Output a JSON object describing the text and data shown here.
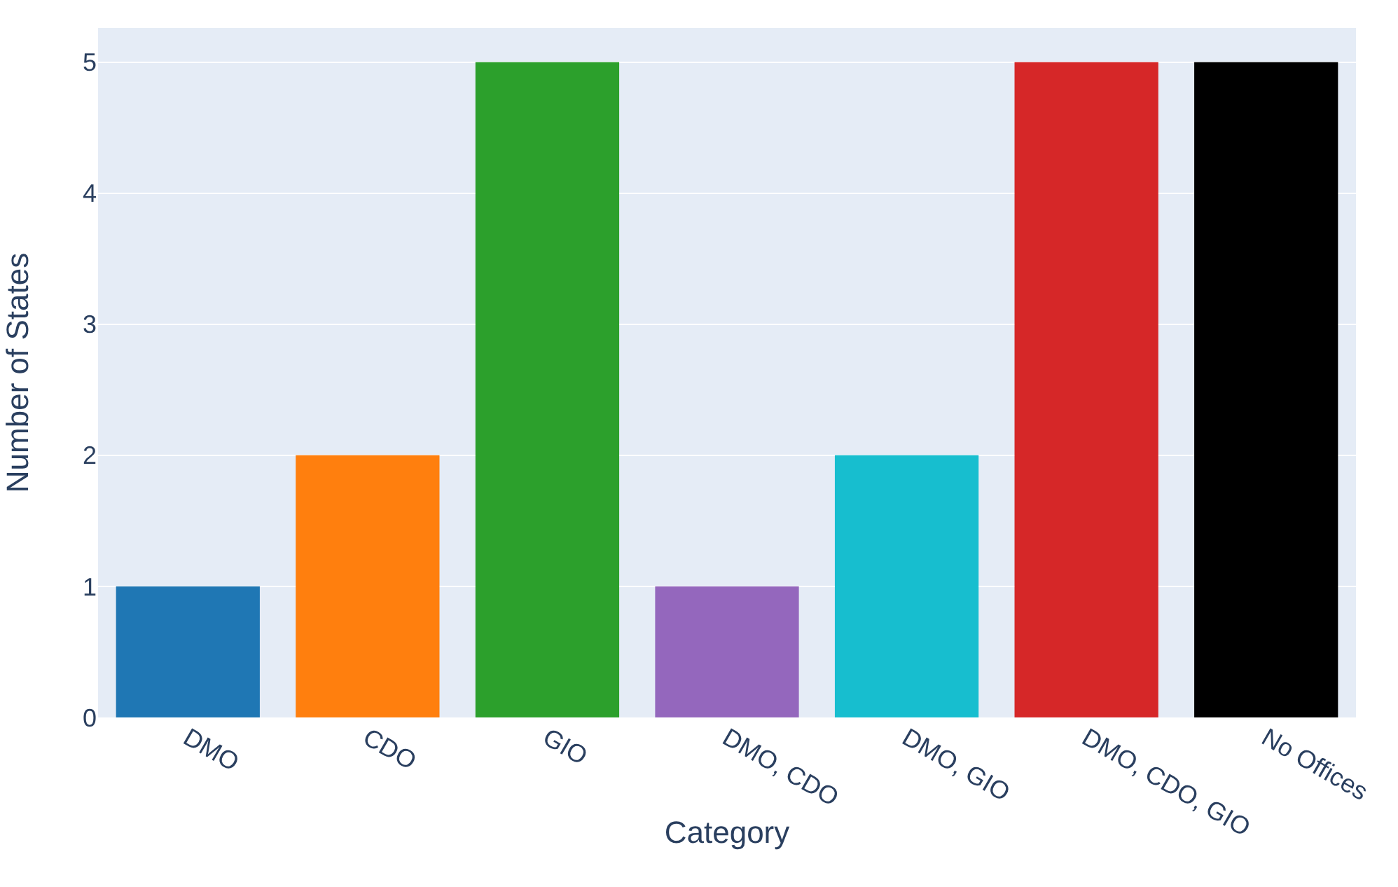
{
  "chart_data": {
    "type": "bar",
    "xlabel": "Category",
    "ylabel": "Number of States",
    "categories": [
      "DMO",
      "CDO",
      "GIO",
      "DMO, CDO",
      "DMO, GIO",
      "DMO, CDO, GIO",
      "No Offices"
    ],
    "values": [
      1,
      2,
      5,
      1,
      2,
      5,
      5
    ],
    "colors": [
      "#1f77b4",
      "#ff7f0e",
      "#2ca02c",
      "#9467bd",
      "#17becf",
      "#d62728",
      "#000000"
    ],
    "ylim": [
      0,
      5.26
    ],
    "yticks": [
      0,
      1,
      2,
      3,
      4,
      5
    ],
    "grid": "y",
    "legend": false
  }
}
